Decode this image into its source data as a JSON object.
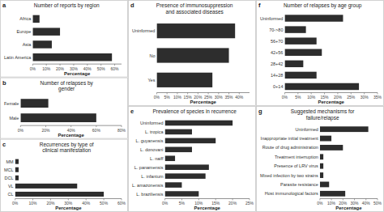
{
  "chart_data": [
    {
      "type": "bar",
      "orientation": "horizontal",
      "annotation": "a",
      "title": "Number of reports by region",
      "categories": [
        "Latin America",
        "Asia",
        "Europe",
        "Africa"
      ],
      "values": [
        58,
        14,
        20,
        5
      ],
      "color": "#2d2d2d",
      "xlabel": "Percentage",
      "xlim": [
        0,
        65
      ],
      "xticks": [
        {
          "value": 0,
          "label": "0%"
        },
        {
          "value": 10,
          "label": "10%"
        },
        {
          "value": 20,
          "label": "20%"
        },
        {
          "value": 30,
          "label": "30%"
        },
        {
          "value": 40,
          "label": "40%"
        },
        {
          "value": 50,
          "label": "50%"
        },
        {
          "value": 60,
          "label": "60%"
        }
      ]
    },
    {
      "type": "bar",
      "orientation": "horizontal",
      "annotation": "b",
      "title": "Number of relapses by\ngender",
      "categories": [
        "Male",
        "Female"
      ],
      "values": [
        60,
        22
      ],
      "color": "#2d2d2d",
      "xlabel": "Percentage",
      "xlim": [
        0,
        80
      ],
      "xticks": [
        {
          "value": 0,
          "label": "0%"
        },
        {
          "value": 20,
          "label": "20%"
        },
        {
          "value": 40,
          "label": "40%"
        },
        {
          "value": 60,
          "label": "60%"
        },
        {
          "value": 80,
          "label": "80%"
        }
      ]
    },
    {
      "type": "bar",
      "orientation": "horizontal",
      "annotation": "c",
      "title": "Recurrences by type of\nclinical manifestation",
      "categories": [
        "CL",
        "VL",
        "DCL",
        "MCL",
        "MM"
      ],
      "values": [
        50,
        35,
        2,
        2,
        2
      ],
      "color": "#2d2d2d",
      "xlabel": "Percentage",
      "xlim": [
        0,
        60
      ],
      "xticks": [
        {
          "value": 0,
          "label": "0%"
        },
        {
          "value": 10,
          "label": "10%"
        },
        {
          "value": 20,
          "label": "20%"
        },
        {
          "value": 30,
          "label": "30%"
        },
        {
          "value": 40,
          "label": "40%"
        },
        {
          "value": 50,
          "label": "50%"
        },
        {
          "value": 60,
          "label": "60%"
        }
      ]
    },
    {
      "type": "bar",
      "orientation": "horizontal",
      "annotation": "d",
      "title": "Presence of immunosuppression\nand associated diseases",
      "categories": [
        "Yes",
        "No",
        "Uninformed"
      ],
      "values": [
        27,
        35,
        38
      ],
      "color": "#2d2d2d",
      "xlabel": "Percentage",
      "xlim": [
        0,
        45
      ],
      "xticks": [
        {
          "value": 0,
          "label": "0%"
        },
        {
          "value": 5,
          "label": "5%"
        },
        {
          "value": 10,
          "label": "10%"
        },
        {
          "value": 15,
          "label": "15%"
        },
        {
          "value": 20,
          "label": "20%"
        },
        {
          "value": 25,
          "label": "25%"
        },
        {
          "value": 30,
          "label": "30%"
        },
        {
          "value": 35,
          "label": "35%"
        },
        {
          "value": 40,
          "label": "40%"
        }
      ]
    },
    {
      "type": "bar",
      "orientation": "horizontal",
      "annotation": "e",
      "title": "Prevalence of species in recurrence",
      "categories": [
        "L. braziliensis",
        "L. amazonensis",
        "L. infantum",
        "L. panamensis",
        "L. naiff",
        "L. donovani",
        "L. guyanensis",
        "L. tropica",
        "Uninformed"
      ],
      "values": [
        10,
        5,
        12,
        13,
        3,
        8,
        15,
        8,
        20
      ],
      "color": "#2d2d2d",
      "xlabel": "Percentage",
      "xlim": [
        0,
        25
      ],
      "xticks": [
        {
          "value": 0,
          "label": "0%"
        },
        {
          "value": 5,
          "label": "5%"
        },
        {
          "value": 10,
          "label": "10%"
        },
        {
          "value": 15,
          "label": "15%"
        },
        {
          "value": 20,
          "label": "20%"
        },
        {
          "value": 25,
          "label": "25%"
        }
      ]
    },
    {
      "type": "bar",
      "orientation": "horizontal",
      "annotation": "f",
      "title": "Number of relapses by age group",
      "categories": [
        "0+14",
        "14+28",
        "28+42",
        "42+56",
        "56+70",
        "70->80",
        "Uninformed"
      ],
      "values": [
        28,
        12,
        7,
        14,
        12,
        8,
        22
      ],
      "color": "#2d2d2d",
      "xlabel": "Percentage",
      "xlim": [
        0,
        35
      ],
      "xticks": [
        {
          "value": 0,
          "label": "0%"
        },
        {
          "value": 5,
          "label": "5%"
        },
        {
          "value": 10,
          "label": "10%"
        },
        {
          "value": 15,
          "label": "15%"
        },
        {
          "value": 20,
          "label": "20%"
        },
        {
          "value": 25,
          "label": "25%"
        },
        {
          "value": 30,
          "label": "30%"
        },
        {
          "value": 35,
          "label": "35%"
        }
      ]
    },
    {
      "type": "bar",
      "orientation": "horizontal",
      "annotation": "g",
      "title": "Suggested mechanisms for\nfailure/relapse",
      "categories": [
        "Host immunological factors",
        "Parasite resistance",
        "Mixed infection by two strains",
        "Presence of LRV virus",
        "Treatment interruption",
        "Route of drug administration",
        "Inappropriate initial treatment",
        "Uninformed"
      ],
      "values": [
        22,
        8,
        3,
        3,
        3,
        20,
        10,
        42
      ],
      "color": "#2d2d2d",
      "xlabel": "Percentage",
      "xlim": [
        0,
        50
      ],
      "xticks": [
        {
          "value": 0,
          "label": "0%"
        },
        {
          "value": 10,
          "label": "10%"
        },
        {
          "value": 20,
          "label": "20%"
        },
        {
          "value": 30,
          "label": "30%"
        },
        {
          "value": 40,
          "label": "40%"
        },
        {
          "value": 50,
          "label": "50%"
        }
      ]
    }
  ]
}
